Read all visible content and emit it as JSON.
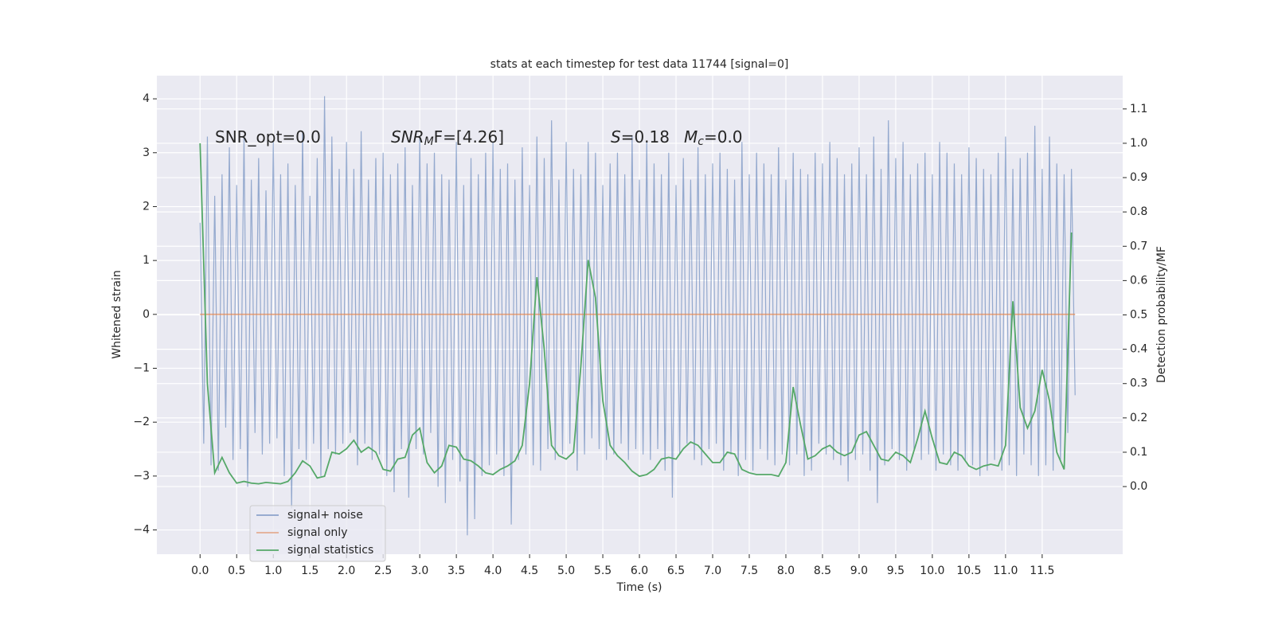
{
  "chart_data": {
    "type": "line",
    "title": "stats at each timestep for test data 11744 [signal=0]",
    "xlabel": "Time (s)",
    "ylabel": "Whitened strain",
    "y2label": "Detection probability/MF",
    "annotations": [
      {
        "text": "SNR_opt=0.0"
      },
      {
        "text": "SNR",
        "sub": "M",
        "rest": "F=[4.26]"
      },
      {
        "text": "S",
        "rest": "=0.18"
      },
      {
        "text": "M",
        "sub": "c",
        "rest": "=0.0"
      }
    ],
    "xlim": [
      -0.59,
      12.6
    ],
    "ylim": [
      -4.45,
      4.43
    ],
    "y2lim": [
      -0.197,
      1.197
    ],
    "grid": true,
    "legend": "lower left",
    "xticks": [
      {
        "value": 0,
        "label": "0.0"
      },
      {
        "value": 0.5,
        "label": "0.5"
      },
      {
        "value": 1,
        "label": "1.0"
      },
      {
        "value": 1.5,
        "label": "1.5"
      },
      {
        "value": 2,
        "label": "2.0"
      },
      {
        "value": 2.5,
        "label": "2.5"
      },
      {
        "value": 3,
        "label": "3.0"
      },
      {
        "value": 3.5,
        "label": "3.5"
      },
      {
        "value": 4,
        "label": "4.0"
      },
      {
        "value": 4.5,
        "label": "4.5"
      },
      {
        "value": 5,
        "label": "5.0"
      },
      {
        "value": 5.5,
        "label": "5.5"
      },
      {
        "value": 6,
        "label": "6.0"
      },
      {
        "value": 6.5,
        "label": "6.5"
      },
      {
        "value": 7,
        "label": "7.0"
      },
      {
        "value": 7.5,
        "label": "7.5"
      },
      {
        "value": 8,
        "label": "8.0"
      },
      {
        "value": 8.5,
        "label": "8.5"
      },
      {
        "value": 9,
        "label": "9.0"
      },
      {
        "value": 9.5,
        "label": "9.5"
      },
      {
        "value": 10,
        "label": "10.0"
      },
      {
        "value": 10.5,
        "label": "10.5"
      },
      {
        "value": 11,
        "label": "11.0"
      },
      {
        "value": 11.5,
        "label": "11.5"
      }
    ],
    "yticks": [
      {
        "value": -4,
        "label": "−4"
      },
      {
        "value": -3,
        "label": "−3"
      },
      {
        "value": -2,
        "label": "−2"
      },
      {
        "value": -1,
        "label": "−1"
      },
      0,
      1,
      2,
      3,
      4
    ],
    "y2ticks": [
      {
        "value": 0,
        "label": "0.0"
      },
      {
        "value": 0.1,
        "label": "0.1"
      },
      {
        "value": 0.2,
        "label": "0.2"
      },
      {
        "value": 0.3,
        "label": "0.3"
      },
      {
        "value": 0.4,
        "label": "0.4"
      },
      {
        "value": 0.5,
        "label": "0.5"
      },
      {
        "value": 0.6,
        "label": "0.6"
      },
      {
        "value": 0.7,
        "label": "0.7"
      },
      {
        "value": 0.8,
        "label": "0.8"
      },
      {
        "value": 0.9,
        "label": "0.9"
      },
      {
        "value": 1,
        "label": "1.0"
      },
      {
        "value": 1.1,
        "label": "1.1"
      }
    ],
    "series": [
      {
        "name": "signal+ noise",
        "color": "#4c72b0",
        "x": [
          0,
          0.05,
          0.1,
          0.15,
          0.2,
          0.25,
          0.3,
          0.35,
          0.4,
          0.45,
          0.5,
          0.55,
          0.6,
          0.65,
          0.7,
          0.75,
          0.8,
          0.85,
          0.9,
          0.95,
          1,
          1.05,
          1.1,
          1.15,
          1.2,
          1.25,
          1.3,
          1.35,
          1.4,
          1.45,
          1.5,
          1.55,
          1.6,
          1.65,
          1.7,
          1.75,
          1.8,
          1.85,
          1.9,
          1.95,
          2,
          2.05,
          2.1,
          2.15,
          2.2,
          2.25,
          2.3,
          2.35,
          2.4,
          2.45,
          2.5,
          2.55,
          2.6,
          2.65,
          2.7,
          2.75,
          2.8,
          2.85,
          2.9,
          2.95,
          3,
          3.05,
          3.1,
          3.15,
          3.2,
          3.25,
          3.3,
          3.35,
          3.4,
          3.45,
          3.5,
          3.55,
          3.6,
          3.65,
          3.7,
          3.75,
          3.8,
          3.85,
          3.9,
          3.95,
          4,
          4.05,
          4.1,
          4.15,
          4.2,
          4.25,
          4.3,
          4.35,
          4.4,
          4.45,
          4.5,
          4.55,
          4.6,
          4.65,
          4.7,
          4.75,
          4.8,
          4.85,
          4.9,
          4.95,
          5,
          5.05,
          5.1,
          5.15,
          5.2,
          5.25,
          5.3,
          5.35,
          5.4,
          5.45,
          5.5,
          5.55,
          5.6,
          5.65,
          5.7,
          5.75,
          5.8,
          5.85,
          5.9,
          5.95,
          6,
          6.05,
          6.1,
          6.15,
          6.2,
          6.25,
          6.3,
          6.35,
          6.4,
          6.45,
          6.5,
          6.55,
          6.6,
          6.65,
          6.7,
          6.75,
          6.8,
          6.85,
          6.9,
          6.95,
          7,
          7.05,
          7.1,
          7.15,
          7.2,
          7.25,
          7.3,
          7.35,
          7.4,
          7.45,
          7.5,
          7.55,
          7.6,
          7.65,
          7.7,
          7.75,
          7.8,
          7.85,
          7.9,
          7.95,
          8,
          8.05,
          8.1,
          8.15,
          8.2,
          8.25,
          8.3,
          8.35,
          8.4,
          8.45,
          8.5,
          8.55,
          8.6,
          8.65,
          8.7,
          8.75,
          8.8,
          8.85,
          8.9,
          8.95,
          9,
          9.05,
          9.1,
          9.15,
          9.2,
          9.25,
          9.3,
          9.35,
          9.4,
          9.45,
          9.5,
          9.55,
          9.6,
          9.65,
          9.7,
          9.75,
          9.8,
          9.85,
          9.9,
          9.95,
          10,
          10.05,
          10.1,
          10.15,
          10.2,
          10.25,
          10.3,
          10.35,
          10.4,
          10.45,
          10.5,
          10.55,
          10.6,
          10.65,
          10.7,
          10.75,
          10.8,
          10.85,
          10.9,
          10.95,
          11,
          11.05,
          11.1,
          11.15,
          11.2,
          11.25,
          11.3,
          11.35,
          11.4,
          11.45,
          11.5,
          11.55,
          11.6,
          11.65,
          11.7,
          11.75,
          11.8,
          11.85,
          11.9,
          11.95
        ],
        "values": [
          1.7,
          -2.4,
          3.3,
          -2.8,
          2.2,
          -2.9,
          2.6,
          -2.1,
          3.1,
          -2.7,
          2.4,
          -2.5,
          3.3,
          -3.2,
          2.5,
          -2.2,
          2.9,
          -2.6,
          2.3,
          -2.4,
          3.2,
          -2.3,
          2.6,
          -3.0,
          2.8,
          -3.6,
          2.4,
          -2.5,
          3.4,
          -2.7,
          2.2,
          -2.4,
          2.9,
          -3.0,
          4.05,
          -2.5,
          3.3,
          -2.6,
          2.7,
          -2.4,
          3.2,
          -2.2,
          2.7,
          -2.8,
          3.4,
          -2.4,
          2.5,
          -2.7,
          2.9,
          -2.6,
          3.0,
          -3.0,
          2.6,
          -3.3,
          2.8,
          -2.5,
          3.1,
          -3.4,
          2.4,
          -2.5,
          3.3,
          -2.6,
          2.8,
          -2.2,
          3.0,
          -3.2,
          2.6,
          -3.5,
          2.5,
          -2.7,
          3.2,
          -3.1,
          2.4,
          -4.1,
          2.9,
          -3.8,
          2.6,
          -3.0,
          3.0,
          -2.8,
          3.2,
          -2.6,
          2.7,
          -3.0,
          2.8,
          -3.9,
          2.5,
          -2.7,
          3.1,
          -2.6,
          2.4,
          -2.8,
          3.3,
          -2.9,
          2.9,
          -2.5,
          3.6,
          -2.7,
          2.5,
          -2.6,
          3.2,
          -2.4,
          2.7,
          -2.9,
          2.6,
          -2.6,
          3.2,
          -2.3,
          3.0,
          -2.5,
          2.4,
          -2.7,
          2.8,
          -2.6,
          3.0,
          -2.4,
          2.6,
          -2.7,
          3.3,
          -2.5,
          2.5,
          -2.6,
          3.2,
          -2.7,
          2.8,
          -2.5,
          2.6,
          -2.9,
          3.0,
          -3.4,
          2.4,
          -2.6,
          2.9,
          -2.4,
          2.5,
          -2.7,
          3.1,
          -2.8,
          2.6,
          -2.5,
          2.8,
          -2.4,
          3.0,
          -2.9,
          2.7,
          -2.6,
          2.5,
          -3.0,
          3.2,
          -2.7,
          2.6,
          -2.9,
          3.0,
          -2.5,
          2.8,
          -2.7,
          2.6,
          -2.8,
          3.1,
          -2.6,
          2.5,
          -2.8,
          3.0,
          -2.6,
          2.7,
          -3.0,
          2.6,
          -2.9,
          3.0,
          -2.4,
          2.8,
          -2.6,
          3.2,
          -2.7,
          2.9,
          -2.8,
          2.6,
          -3.1,
          2.8,
          -2.7,
          3.1,
          -2.6,
          2.6,
          -2.9,
          3.3,
          -3.5,
          2.7,
          -2.8,
          3.6,
          -2.5,
          2.9,
          -2.7,
          3.2,
          -2.9,
          2.6,
          -2.5,
          2.8,
          -2.7,
          3.0,
          -2.6,
          2.6,
          -2.9,
          3.2,
          -2.6,
          3.0,
          -2.8,
          2.8,
          -2.9,
          2.6,
          -2.7,
          3.1,
          -2.8,
          2.9,
          -3.0,
          2.7,
          -2.9,
          2.6,
          -2.7,
          3.0,
          -2.9,
          3.3,
          -2.8,
          2.7,
          -3.0,
          2.9,
          -2.6,
          3.0,
          -2.8,
          3.5,
          -3.0,
          2.7,
          -2.8,
          3.3,
          -2.9,
          2.8,
          -2.7,
          2.6,
          -2.2,
          2.7,
          -1.5
        ]
      },
      {
        "name": "signal only",
        "color": "#dd8452",
        "x": [
          0,
          11.95
        ],
        "values": [
          0,
          0
        ]
      },
      {
        "name": "signal statistics",
        "color": "#55a868",
        "axis": "y2",
        "x": [
          0,
          0.1,
          0.2,
          0.3,
          0.4,
          0.5,
          0.6,
          0.7,
          0.8,
          0.9,
          1,
          1.1,
          1.2,
          1.3,
          1.4,
          1.5,
          1.6,
          1.7,
          1.8,
          1.9,
          2,
          2.1,
          2.2,
          2.3,
          2.4,
          2.5,
          2.6,
          2.7,
          2.8,
          2.9,
          3,
          3.1,
          3.2,
          3.3,
          3.4,
          3.5,
          3.6,
          3.7,
          3.8,
          3.9,
          4,
          4.1,
          4.2,
          4.3,
          4.4,
          4.5,
          4.6,
          4.7,
          4.8,
          4.9,
          5,
          5.1,
          5.2,
          5.3,
          5.4,
          5.5,
          5.6,
          5.7,
          5.8,
          5.9,
          6,
          6.1,
          6.2,
          6.3,
          6.4,
          6.5,
          6.6,
          6.7,
          6.8,
          6.9,
          7,
          7.1,
          7.2,
          7.3,
          7.4,
          7.5,
          7.6,
          7.7,
          7.8,
          7.9,
          8,
          8.1,
          8.2,
          8.3,
          8.4,
          8.5,
          8.6,
          8.7,
          8.8,
          8.9,
          9,
          9.1,
          9.2,
          9.3,
          9.4,
          9.5,
          9.6,
          9.7,
          9.8,
          9.9,
          10,
          10.1,
          10.2,
          10.3,
          10.4,
          10.5,
          10.6,
          10.7,
          10.8,
          10.9,
          11,
          11.1,
          11.2,
          11.3,
          11.4,
          11.5,
          11.6,
          11.7,
          11.8,
          11.9
        ],
        "values": [
          1.0,
          0.3,
          0.04,
          0.085,
          0.04,
          0.01,
          0.015,
          0.01,
          0.008,
          0.012,
          0.01,
          0.008,
          0.015,
          0.04,
          0.075,
          0.06,
          0.025,
          0.03,
          0.1,
          0.095,
          0.11,
          0.135,
          0.1,
          0.115,
          0.1,
          0.05,
          0.045,
          0.08,
          0.085,
          0.15,
          0.17,
          0.07,
          0.04,
          0.06,
          0.12,
          0.115,
          0.08,
          0.075,
          0.06,
          0.04,
          0.035,
          0.05,
          0.06,
          0.075,
          0.12,
          0.3,
          0.61,
          0.4,
          0.12,
          0.09,
          0.08,
          0.1,
          0.35,
          0.66,
          0.55,
          0.25,
          0.12,
          0.09,
          0.07,
          0.045,
          0.03,
          0.035,
          0.05,
          0.08,
          0.085,
          0.08,
          0.11,
          0.13,
          0.12,
          0.095,
          0.07,
          0.07,
          0.1,
          0.095,
          0.05,
          0.04,
          0.035,
          0.035,
          0.035,
          0.03,
          0.07,
          0.29,
          0.18,
          0.08,
          0.09,
          0.11,
          0.12,
          0.1,
          0.09,
          0.1,
          0.15,
          0.16,
          0.12,
          0.08,
          0.075,
          0.1,
          0.09,
          0.07,
          0.14,
          0.22,
          0.14,
          0.07,
          0.065,
          0.1,
          0.09,
          0.06,
          0.05,
          0.06,
          0.065,
          0.06,
          0.12,
          0.54,
          0.23,
          0.17,
          0.22,
          0.34,
          0.25,
          0.1,
          0.05,
          0.74
        ]
      }
    ]
  }
}
